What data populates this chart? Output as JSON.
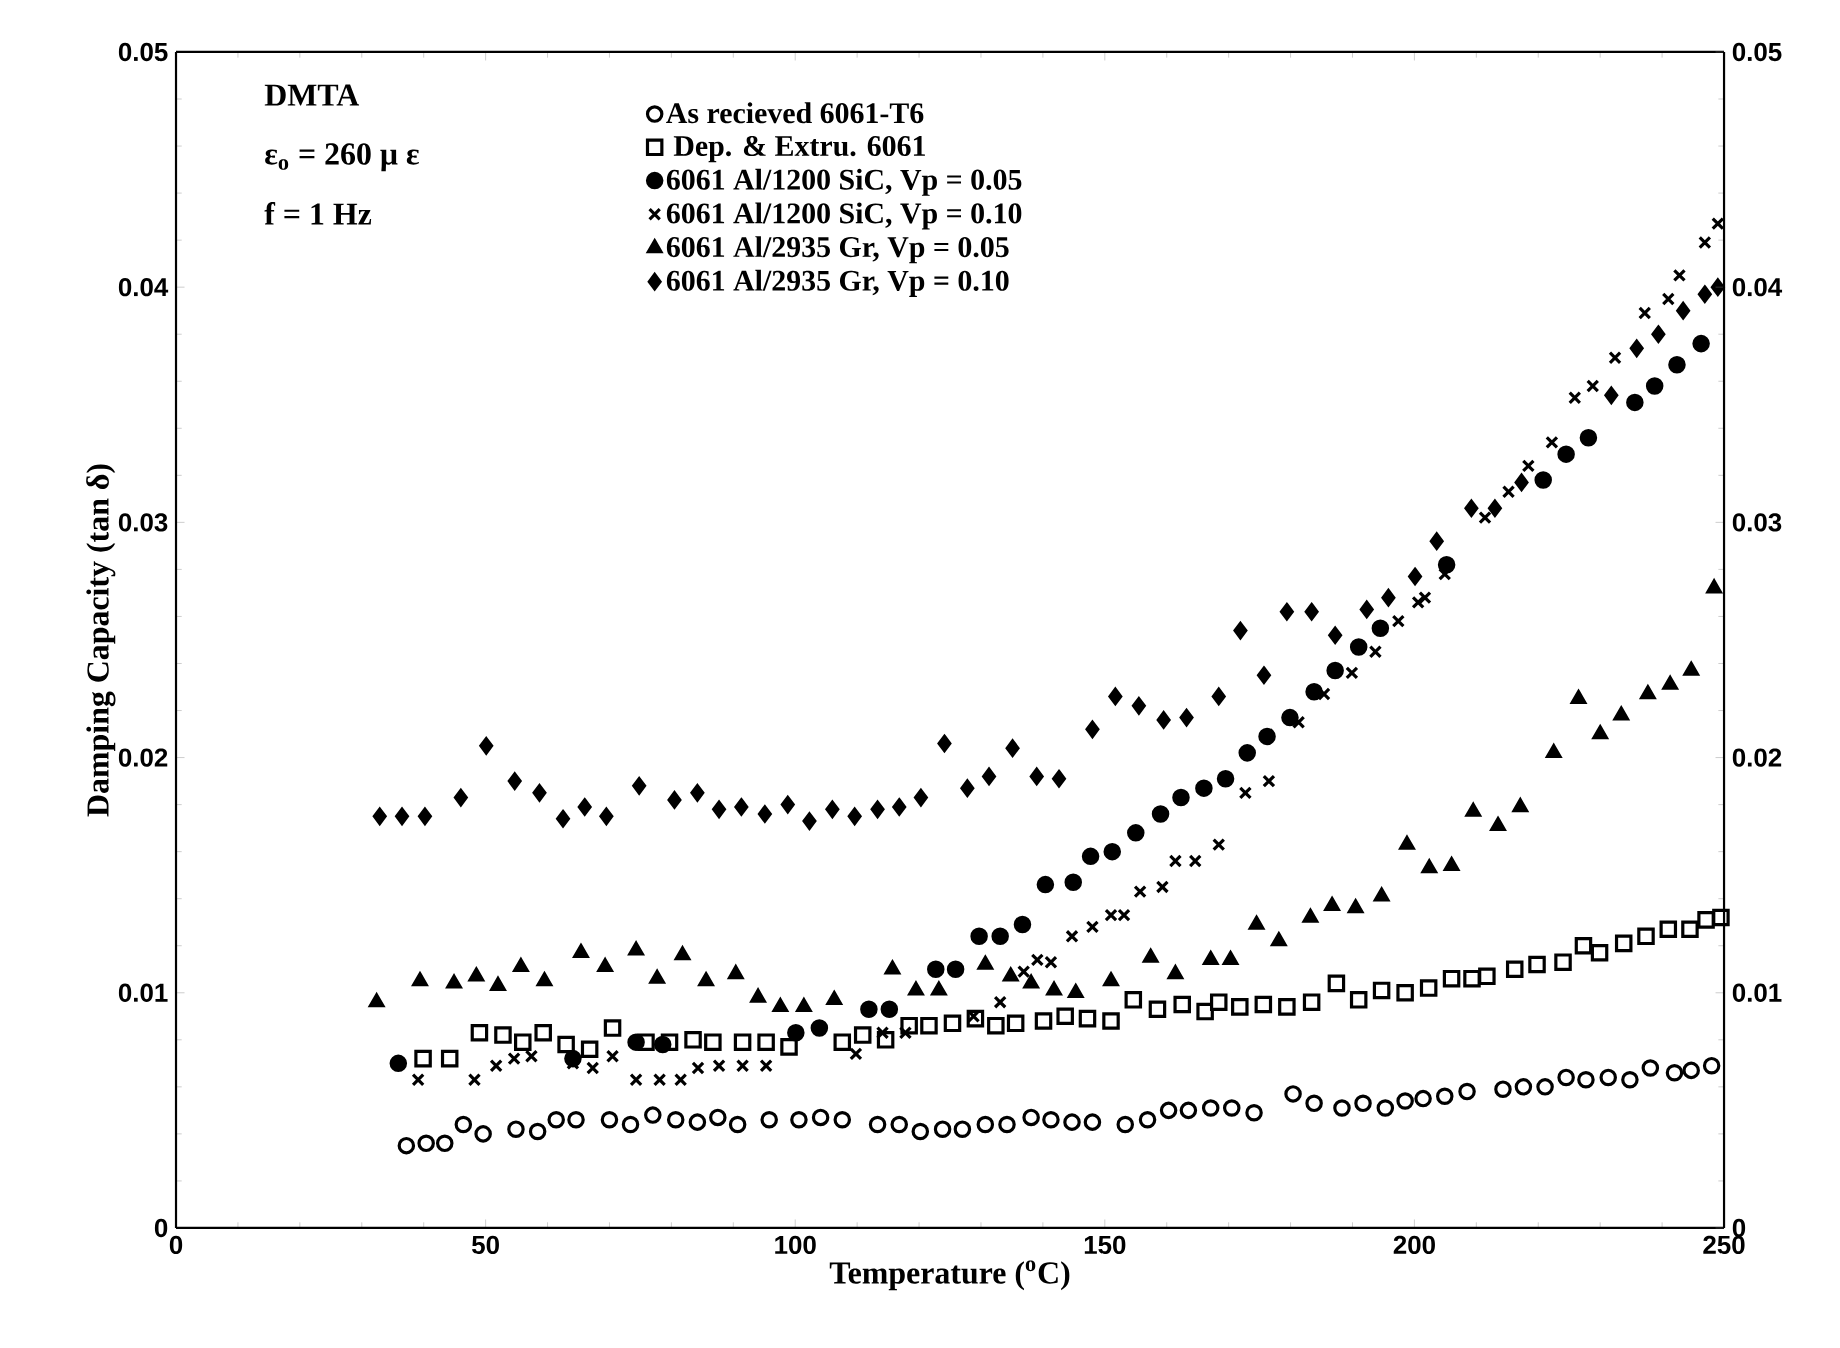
{
  "chart_data": {
    "type": "scatter",
    "xlabel": "Temperature ($^{o}$C)",
    "ylabel": "Damping Capacity (tan δ)",
    "annotations": [
      "DMTA",
      "ε$_{o}$ = 260 μ ε",
      "f = 1 Hz"
    ],
    "xlim": [
      0,
      250
    ],
    "xticks": [
      0,
      50,
      100,
      150,
      200,
      250
    ],
    "ylim": [
      0,
      0.05
    ],
    "yticks": [
      0,
      0.01,
      0.02,
      0.03,
      0.04,
      0.05
    ],
    "y2lim": [
      0,
      0.05
    ],
    "y2ticks": [
      0,
      0.01,
      0.02,
      0.03,
      0.04,
      0.05
    ],
    "legend": "top left",
    "grid": false,
    "series": [
      {
        "name": "As recieved 6061-T6",
        "color": "#000000",
        "marker": "circle",
        "x": [
          37.2,
          40.4,
          43.4,
          46.4,
          49.6,
          54.9,
          58.4,
          61.4,
          64.6,
          70.0,
          73.4,
          77.0,
          80.7,
          84.2,
          87.5,
          90.7,
          95.8,
          100.6,
          104.1,
          107.6,
          113.3,
          116.8,
          120.2,
          123.8,
          127.0,
          130.7,
          134.2,
          138.1,
          141.3,
          144.7,
          148.0,
          153.3,
          156.9,
          160.3,
          163.5,
          167.1,
          170.5,
          174.1,
          180.4,
          183.8,
          188.3,
          191.7,
          195.3,
          198.5,
          201.4,
          204.9,
          208.5,
          214.3,
          217.6,
          221.1,
          224.5,
          227.7,
          231.3,
          234.8,
          238.1,
          242.0,
          244.7,
          248.0
        ],
        "values": [
          0.0035,
          0.0036,
          0.0036,
          0.0044,
          0.004,
          0.0042,
          0.0041,
          0.0046,
          0.0046,
          0.0046,
          0.0044,
          0.0048,
          0.0046,
          0.0045,
          0.0047,
          0.0044,
          0.0046,
          0.0046,
          0.0047,
          0.0046,
          0.0044,
          0.0044,
          0.0041,
          0.0042,
          0.0042,
          0.0044,
          0.0044,
          0.0047,
          0.0046,
          0.0045,
          0.0045,
          0.0044,
          0.0046,
          0.005,
          0.005,
          0.0051,
          0.0051,
          0.0049,
          0.0057,
          0.0053,
          0.0051,
          0.0053,
          0.0051,
          0.0054,
          0.0055,
          0.0056,
          0.0058,
          0.0059,
          0.006,
          0.006,
          0.0064,
          0.0063,
          0.0064,
          0.0063,
          0.0068,
          0.0066,
          0.0067,
          0.0069
        ]
      },
      {
        "name": " Dep. & Extru. 6061",
        "color": "#000000",
        "marker": "square",
        "x": [
          39.9,
          44.2,
          49.0,
          52.8,
          56.0,
          59.3,
          63.0,
          66.8,
          70.5,
          75.9,
          79.7,
          83.5,
          86.7,
          91.5,
          95.3,
          99.0,
          107.6,
          110.9,
          114.6,
          118.4,
          121.6,
          125.4,
          129.1,
          132.4,
          135.6,
          140.1,
          143.6,
          147.2,
          151.0,
          154.6,
          158.5,
          162.5,
          166.2,
          168.4,
          171.8,
          175.6,
          179.4,
          183.4,
          187.4,
          191.0,
          194.7,
          198.5,
          202.3,
          206.0,
          209.3,
          211.7,
          216.2,
          219.8,
          224.0,
          227.3,
          229.9,
          233.8,
          237.4,
          241.0,
          244.5,
          247.1,
          249.5
        ],
        "values": [
          0.0072,
          0.0072,
          0.0083,
          0.0082,
          0.0079,
          0.0083,
          0.0078,
          0.0076,
          0.0085,
          0.0079,
          0.0079,
          0.008,
          0.0079,
          0.0079,
          0.0079,
          0.0077,
          0.0079,
          0.0082,
          0.008,
          0.0086,
          0.0086,
          0.0087,
          0.0089,
          0.0086,
          0.0087,
          0.0088,
          0.009,
          0.0089,
          0.0088,
          0.0097,
          0.0093,
          0.0095,
          0.0092,
          0.0096,
          0.0094,
          0.0095,
          0.0094,
          0.0096,
          0.0104,
          0.0097,
          0.0101,
          0.01,
          0.0102,
          0.0106,
          0.0106,
          0.0107,
          0.011,
          0.0112,
          0.0113,
          0.012,
          0.0117,
          0.0121,
          0.0124,
          0.0127,
          0.0127,
          0.0131,
          0.0132
        ]
      },
      {
        "name": "6061 Al/1200 SiC, Vp = 0.05",
        "color": "#000000",
        "marker": "circle",
        "x": [
          35.9,
          64.1,
          74.3,
          78.6,
          100.1,
          103.9,
          111.9,
          115.2,
          122.7,
          125.9,
          129.7,
          133.1,
          136.7,
          140.4,
          144.9,
          147.7,
          151.2,
          155.0,
          159.0,
          162.3,
          166.0,
          169.5,
          173.0,
          176.2,
          179.9,
          183.8,
          187.2,
          191.0,
          194.5,
          205.2,
          220.8,
          224.5,
          228.1,
          235.6,
          238.8,
          242.4,
          246.3
        ],
        "values": [
          0.007,
          0.0072,
          0.0079,
          0.0078,
          0.0083,
          0.0085,
          0.0093,
          0.0093,
          0.011,
          0.011,
          0.0124,
          0.0124,
          0.0129,
          0.0146,
          0.0147,
          0.0158,
          0.016,
          0.0168,
          0.0176,
          0.0183,
          0.0187,
          0.0191,
          0.0202,
          0.0209,
          0.0217,
          0.0228,
          0.0237,
          0.0247,
          0.0255,
          0.0282,
          0.0318,
          0.0329,
          0.0336,
          0.0351,
          0.0358,
          0.0367,
          0.0376
        ]
      },
      {
        "name": "6061 Al/1200 SiC, Vp = 0.10",
        "color": "#000000",
        "marker": "cross",
        "x": [
          39.1,
          48.2,
          51.7,
          54.6,
          57.4,
          64.1,
          67.3,
          70.5,
          74.3,
          78.1,
          81.5,
          84.3,
          87.7,
          91.5,
          95.3,
          109.8,
          114.1,
          117.8,
          128.8,
          133.1,
          136.9,
          139.1,
          141.3,
          144.7,
          148.0,
          151.0,
          153.1,
          155.7,
          159.3,
          161.4,
          164.6,
          168.4,
          172.7,
          176.5,
          181.3,
          185.4,
          189.9,
          193.7,
          197.4,
          200.6,
          201.7,
          204.9,
          211.4,
          215.2,
          218.4,
          222.2,
          225.9,
          228.8,
          232.4,
          237.2,
          241.0,
          242.8,
          246.9,
          249.0
        ],
        "values": [
          0.0063,
          0.0063,
          0.0069,
          0.0072,
          0.0073,
          0.007,
          0.0068,
          0.0073,
          0.0063,
          0.0063,
          0.0063,
          0.0068,
          0.0069,
          0.0069,
          0.0069,
          0.0074,
          0.0083,
          0.0083,
          0.009,
          0.0096,
          0.0109,
          0.0114,
          0.0113,
          0.0124,
          0.0128,
          0.0133,
          0.0133,
          0.0143,
          0.0145,
          0.0156,
          0.0156,
          0.0163,
          0.0185,
          0.019,
          0.0215,
          0.0227,
          0.0236,
          0.0245,
          0.0258,
          0.0266,
          0.0268,
          0.0278,
          0.0302,
          0.0313,
          0.0324,
          0.0334,
          0.0353,
          0.0358,
          0.037,
          0.0389,
          0.0395,
          0.0405,
          0.0419,
          0.0427
        ]
      },
      {
        "name": "6061 Al/2935 Gr, Vp = 0.05",
        "color": "#000000",
        "marker": "triangle",
        "x": [
          32.4,
          39.4,
          44.9,
          48.5,
          52.0,
          55.7,
          59.5,
          65.4,
          69.3,
          74.3,
          77.7,
          81.8,
          85.6,
          90.4,
          94.0,
          97.6,
          101.4,
          106.3,
          115.7,
          119.5,
          123.2,
          130.7,
          134.8,
          138.1,
          141.8,
          145.3,
          151.0,
          157.4,
          161.4,
          167.1,
          170.3,
          174.5,
          178.1,
          183.2,
          186.7,
          190.5,
          194.7,
          198.8,
          202.4,
          206.0,
          209.5,
          213.5,
          217.1,
          222.5,
          226.5,
          230.0,
          233.4,
          237.7,
          241.3,
          244.7,
          248.4
        ],
        "values": [
          0.0096,
          0.0105,
          0.0104,
          0.0107,
          0.0103,
          0.0111,
          0.0105,
          0.0117,
          0.0111,
          0.0118,
          0.0106,
          0.0116,
          0.0105,
          0.0108,
          0.0098,
          0.0094,
          0.0094,
          0.0097,
          0.011,
          0.0101,
          0.0101,
          0.0112,
          0.0107,
          0.0104,
          0.0101,
          0.01,
          0.0105,
          0.0115,
          0.0108,
          0.0114,
          0.0114,
          0.0129,
          0.0122,
          0.0132,
          0.0137,
          0.0136,
          0.0141,
          0.0163,
          0.0153,
          0.0154,
          0.0177,
          0.0171,
          0.0179,
          0.0202,
          0.0225,
          0.021,
          0.0218,
          0.0227,
          0.0231,
          0.0237,
          0.0272
        ]
      },
      {
        "name": "6061 Al/2935 Gr, Vp = 0.10",
        "color": "#000000",
        "marker": "diamond",
        "x": [
          32.9,
          36.5,
          40.2,
          46.0,
          50.1,
          54.7,
          58.7,
          62.5,
          66.0,
          69.5,
          74.8,
          80.5,
          84.2,
          87.7,
          91.3,
          95.1,
          98.8,
          102.3,
          106.0,
          109.6,
          113.3,
          116.8,
          120.3,
          124.1,
          127.8,
          131.3,
          135.1,
          139.0,
          142.6,
          148.0,
          151.7,
          155.5,
          159.5,
          163.2,
          168.4,
          171.9,
          175.7,
          179.4,
          183.4,
          187.2,
          192.3,
          195.8,
          200.1,
          203.6,
          209.2,
          213.0,
          217.3,
          231.8,
          235.9,
          239.4,
          243.4,
          246.9,
          249.0
        ],
        "values": [
          0.0175,
          0.0175,
          0.0175,
          0.0183,
          0.0205,
          0.019,
          0.0185,
          0.0174,
          0.0179,
          0.0175,
          0.0188,
          0.0182,
          0.0185,
          0.0178,
          0.0179,
          0.0176,
          0.018,
          0.0173,
          0.0178,
          0.0175,
          0.0178,
          0.0179,
          0.0183,
          0.0206,
          0.0187,
          0.0192,
          0.0204,
          0.0192,
          0.0191,
          0.0212,
          0.0226,
          0.0222,
          0.0216,
          0.0217,
          0.0226,
          0.0254,
          0.0235,
          0.0262,
          0.0262,
          0.0252,
          0.0263,
          0.0268,
          0.0277,
          0.0292,
          0.0306,
          0.0306,
          0.0317,
          0.0354,
          0.0374,
          0.038,
          0.039,
          0.0397,
          0.04
        ]
      }
    ]
  }
}
